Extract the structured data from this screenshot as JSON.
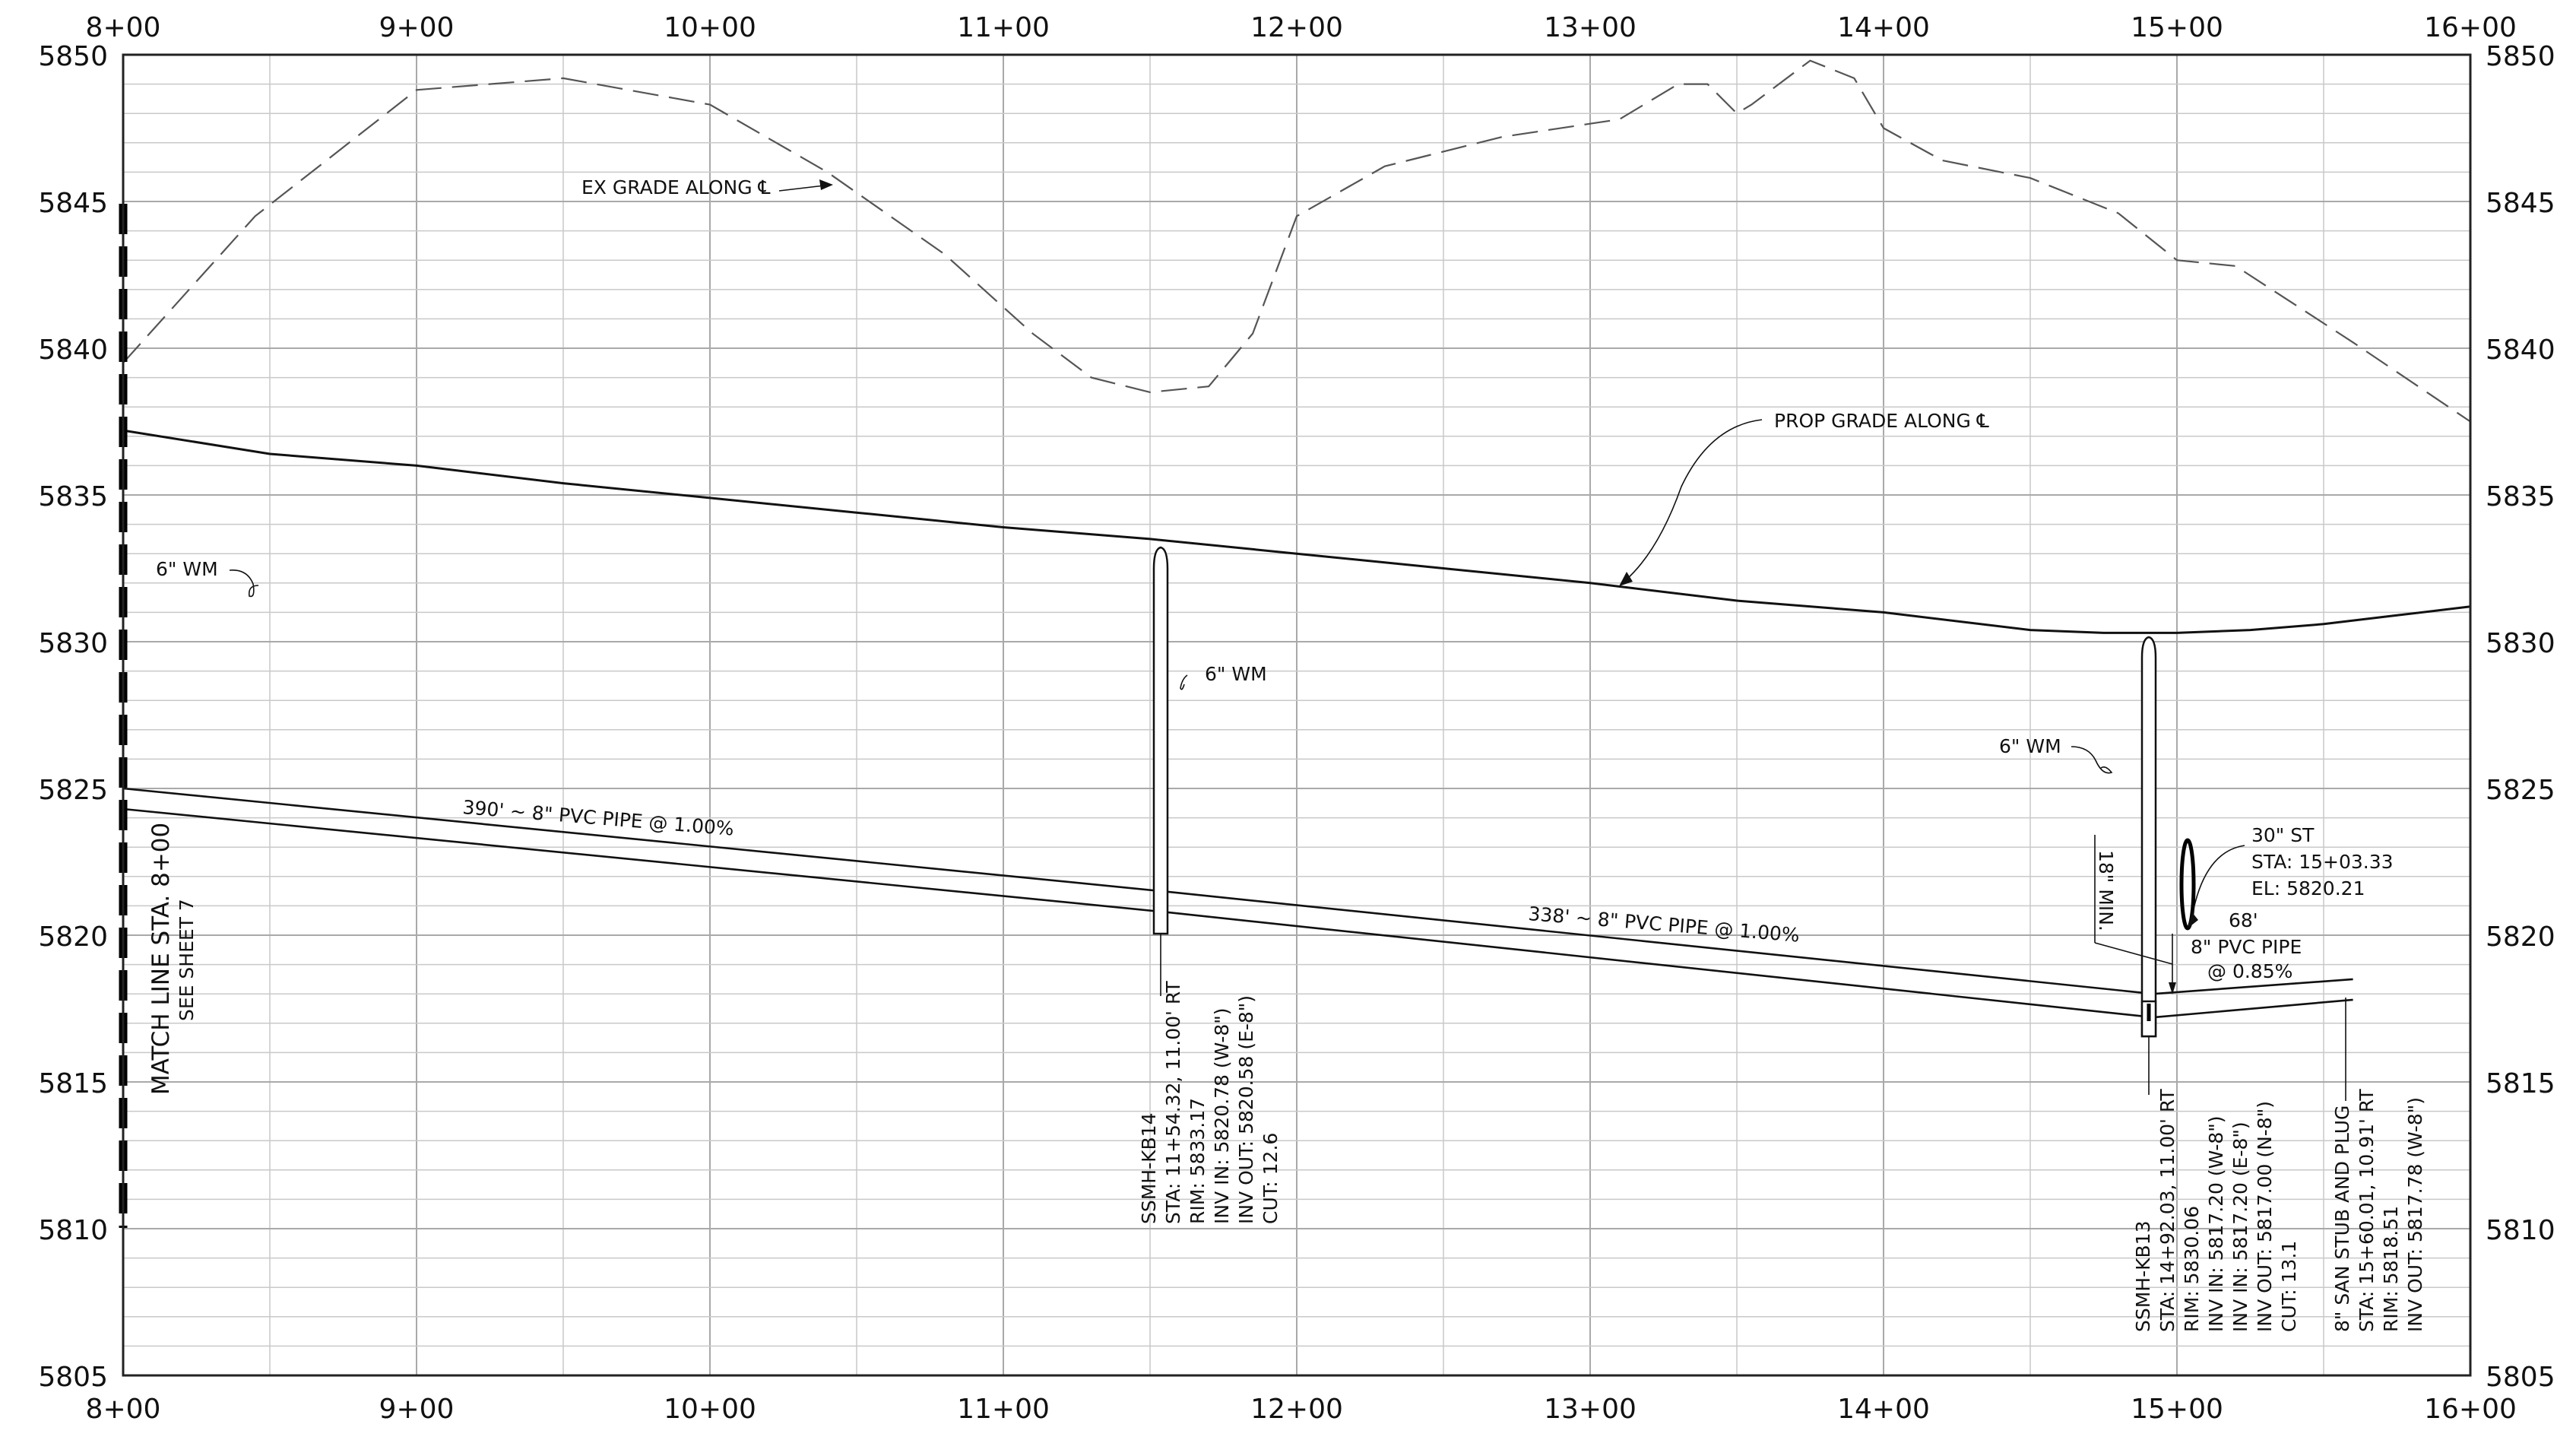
{
  "axes": {
    "x_ticks": [
      "8+00",
      "9+00",
      "10+00",
      "11+00",
      "12+00",
      "13+00",
      "14+00",
      "15+00",
      "16+00"
    ],
    "y_ticks": [
      "5850",
      "5845",
      "5840",
      "5835",
      "5830",
      "5825",
      "5820",
      "5815",
      "5810",
      "5805"
    ]
  },
  "labels": {
    "ex_grade": "EX GRADE ALONG ℄",
    "prop_grade": "PROP GRADE ALONG ℄",
    "wm_left": "6\" WM",
    "wm_mid": "6\" WM",
    "wm_right": "6\" WM",
    "pipe1": "390' ~ 8\" PVC PIPE @ 1.00%",
    "pipe2": "338' ~ 8\" PVC PIPE @ 1.00%",
    "match_line": "MATCH LINE STA. 8+00",
    "see_sheet": "SEE SHEET 7",
    "min_clear": "18\" MIN.",
    "st30": [
      "30\" ST",
      "STA: 15+03.33",
      "EL: 5820.21"
    ],
    "stub_pipe": [
      "68'",
      "8\" PVC PIPE",
      "@ 0.85%"
    ]
  },
  "manholes": {
    "kb14": [
      "SSMH-KB14",
      "STA: 11+54.32, 11.00' RT",
      "RIM: 5833.17",
      "INV IN: 5820.78 (W-8\")",
      "INV OUT: 5820.58 (E-8\")",
      "CUT: 12.6"
    ],
    "kb13": [
      "SSMH-KB13",
      "STA: 14+92.03, 11.00' RT",
      "RIM: 5830.06",
      "INV IN: 5817.20 (W-8\")",
      "INV IN: 5817.20 (E-8\")",
      "INV OUT: 5817.00 (N-8\")",
      "CUT: 13.1"
    ],
    "stub": [
      "8\" SAN STUB AND PLUG",
      "STA: 15+60.01, 10.91' RT",
      "RIM: 5818.51",
      "INV OUT: 5817.78 (W-8\")"
    ]
  },
  "chart_data": {
    "type": "line",
    "title": "",
    "xlabel": "",
    "ylabel": "",
    "xlim": [
      800,
      1600
    ],
    "ylim": [
      5805,
      5850
    ],
    "series": [
      {
        "x": [
          800,
          845,
          900,
          950,
          1000,
          1040,
          1080,
          1110,
          1130,
          1150,
          1170,
          1185,
          1200,
          1230,
          1270,
          1310,
          1330,
          1340,
          1350,
          1355,
          1375,
          1390,
          1400,
          1420,
          1450,
          1480,
          1500,
          1520,
          1560,
          1600
        ],
        "y": [
          5839.5,
          5844.5,
          5848.8,
          5849.2,
          5848.3,
          5846.0,
          5843.2,
          5840.5,
          5839.0,
          5838.5,
          5838.7,
          5840.5,
          5844.5,
          5846.2,
          5847.2,
          5847.8,
          5849.0,
          5849.0,
          5848.0,
          5848.3,
          5849.8,
          5849.2,
          5847.5,
          5846.4,
          5845.8,
          5844.6,
          5843.0,
          5842.8,
          5840.2,
          5837.5
        ]
      },
      {
        "x": [
          800,
          850,
          900,
          950,
          1000,
          1050,
          1100,
          1150,
          1200,
          1250,
          1300,
          1350,
          1400,
          1450,
          1475,
          1500,
          1525,
          1550,
          1575,
          1600
        ],
        "y": [
          5837.2,
          5836.4,
          5836.0,
          5835.4,
          5834.9,
          5834.4,
          5833.9,
          5833.5,
          5833.0,
          5832.5,
          5832.0,
          5831.4,
          5831.0,
          5830.4,
          5830.3,
          5830.3,
          5830.4,
          5830.6,
          5830.9,
          5831.2
        ]
      },
      {
        "x": [
          800,
          1154,
          1492
        ],
        "y": [
          5825.0,
          5821.5,
          5818.0
        ]
      },
      {
        "x": [
          800,
          1154,
          1492
        ],
        "y": [
          5824.3,
          5820.8,
          5817.2
        ]
      },
      {
        "x": [
          1492,
          1560
        ],
        "y": [
          5818.0,
          5818.5
        ]
      },
      {
        "x": [
          1492,
          1560
        ],
        "y": [
          5817.2,
          5817.8
        ]
      }
    ],
    "grid": true
  }
}
